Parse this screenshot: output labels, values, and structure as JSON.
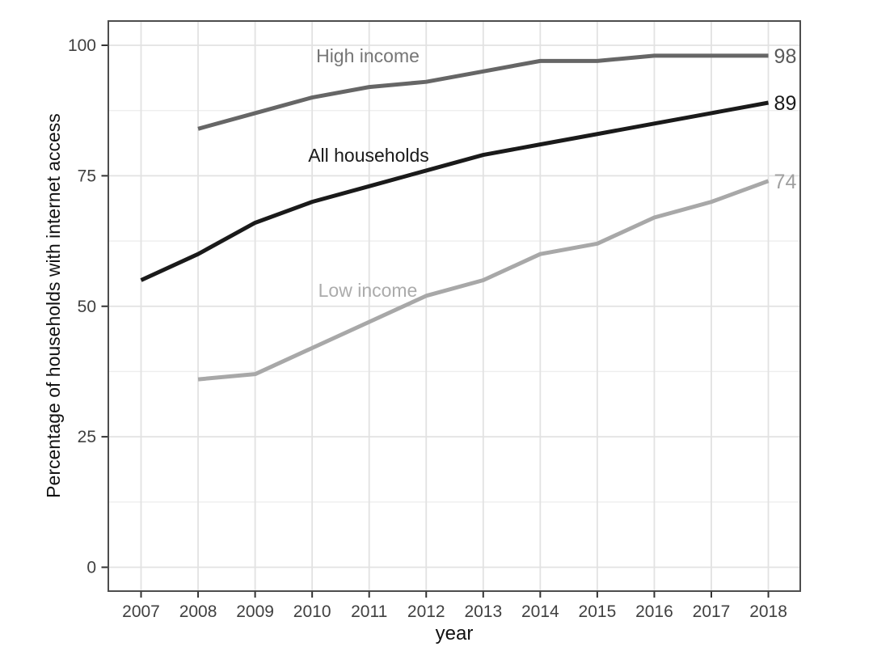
{
  "chart_data": {
    "type": "line",
    "title": "",
    "xlabel": "year",
    "ylabel": "Percentage of households with internet access",
    "x": [
      2007,
      2008,
      2009,
      2010,
      2011,
      2012,
      2013,
      2014,
      2015,
      2016,
      2017,
      2018
    ],
    "xlim": [
      2006.45,
      2018.55
    ],
    "ylim": [
      0,
      100
    ],
    "yticks": [
      0,
      25,
      50,
      75,
      100
    ],
    "yticks_minor": [
      12.5,
      37.5,
      62.5,
      87.5
    ],
    "grid": "horizontal major+minor, vertical major per year",
    "legend": "inline-labels",
    "series": [
      {
        "name": "High income",
        "values": [
          null,
          84,
          87,
          90,
          92,
          93,
          95,
          97,
          97,
          98,
          98,
          98
        ],
        "color": "#666666",
        "end_label": "98",
        "end_label_color": "#595959",
        "inline_label": {
          "text": "High income",
          "color": "#757575",
          "x": 455,
          "y": 69
        }
      },
      {
        "name": "All households",
        "values": [
          55,
          60,
          66,
          70,
          73,
          76,
          79,
          81,
          83,
          85,
          87,
          89
        ],
        "color": "#1a1a1a",
        "end_label": "89",
        "end_label_color": "#1a1a1a",
        "inline_label": {
          "text": "All households",
          "color": "#1a1a1a",
          "x": 456,
          "y": 192
        }
      },
      {
        "name": "Low income",
        "values": [
          null,
          36,
          37,
          42,
          47,
          52,
          55,
          60,
          62,
          67,
          70,
          74
        ],
        "color": "#a8a8a8",
        "end_label": "74",
        "end_label_color": "#a0a0a0",
        "inline_label": {
          "text": "Low income",
          "color": "#ababab",
          "x": 455,
          "y": 359
        }
      }
    ]
  },
  "style_colors": {
    "grid_major": "#e2e2e2",
    "grid_minor": "#eeeeee",
    "panel_border": "#4d4d4d",
    "tick_mark": "#333333",
    "tick_label": "#404040",
    "axis_title": "#111111",
    "background": "#ffffff"
  }
}
